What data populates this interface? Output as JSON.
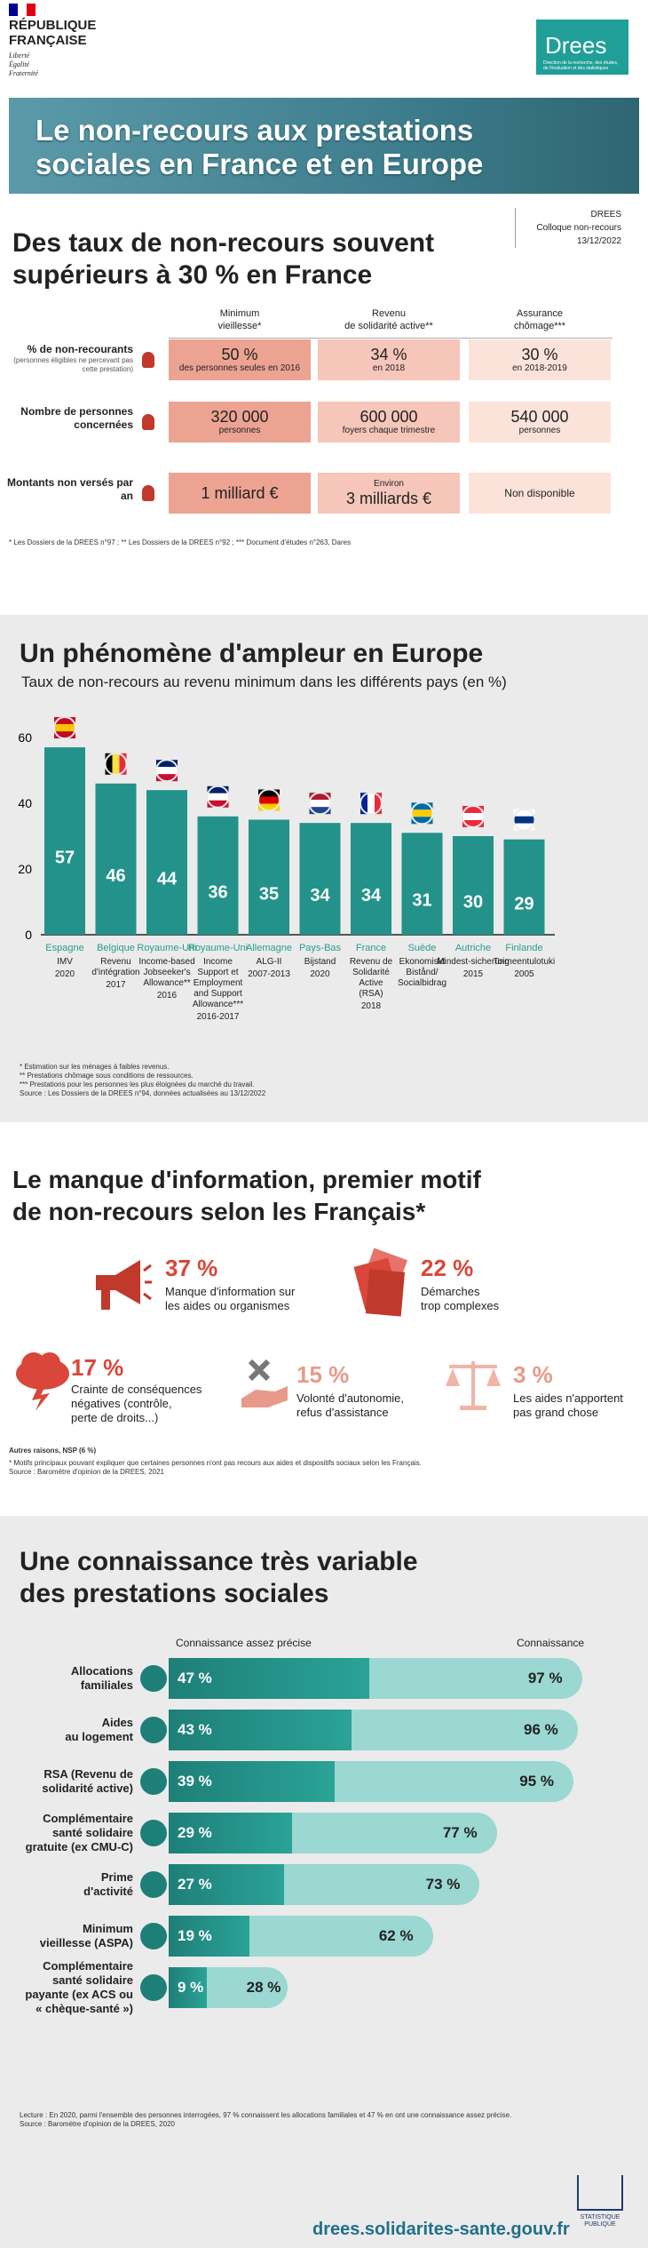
{
  "header": {
    "republic": [
      "RÉPUBLIQUE",
      "FRANÇAISE"
    ],
    "motto": [
      "Liberté",
      "Égalité",
      "Fraternité"
    ],
    "drees_logo": "Drees",
    "drees_sub": "Direction de la recherche, des études, de l'évaluation et des statistiques",
    "banner_title": [
      "Le non-recours aux prestations",
      "sociales en France et en Europe"
    ],
    "meta": [
      "DREES",
      "Colloque non-recours",
      "13/12/2022"
    ]
  },
  "s1": {
    "title": [
      "Des taux de non-recours souvent",
      "supérieurs à 30 % en France"
    ],
    "cols": [
      [
        "Minimum",
        "vieillesse*"
      ],
      [
        "Revenu",
        "de solidarité active**"
      ],
      [
        "Assurance",
        "chômage***"
      ]
    ],
    "rows": [
      {
        "label": "% de non-recourants",
        "sub": "(personnes éligibles ne percevant pas cette prestation)"
      },
      {
        "label": "Nombre de personnes concernées",
        "sub": ""
      },
      {
        "label": "Montants non versés par an",
        "sub": ""
      }
    ],
    "cells": [
      [
        {
          "v": "50 %",
          "s": "des personnes seules en 2016"
        },
        {
          "v": "34 %",
          "s": "en 2018"
        },
        {
          "v": "30 %",
          "s": "en 2018-2019"
        }
      ],
      [
        {
          "v": "320 000",
          "s": "personnes"
        },
        {
          "v": "600 000",
          "s": "foyers chaque trimestre"
        },
        {
          "v": "540 000",
          "s": "personnes"
        }
      ],
      [
        {
          "v": "1 milliard €",
          "s": ""
        },
        {
          "v": "3 milliards €",
          "s": "Environ"
        },
        {
          "v": "Non disponible",
          "s": ""
        }
      ]
    ],
    "footnote": "* Les Dossiers de la DREES n°97 ; ** Les Dossiers de la DREES n°92 ; *** Document d'études n°263, Dares",
    "colors": {
      "dark": "#eda392",
      "mid": "#f5c6b9",
      "light": "#fbe3da"
    }
  },
  "s2": {
    "title": "Un phénomène d'ampleur en Europe",
    "subtitle": "Taux de non-recours au revenu minimum dans les différents pays (en %)",
    "notes": [
      "* Estimation sur les ménages à faibles revenus.",
      "** Prestations chômage sous conditions de ressources.",
      "*** Prestations pour les personnes les plus éloignées du marché du travail.",
      "Source : Les Dossiers de la DREES n°94, données actualisées au 13/12/2022"
    ]
  },
  "chart_data": {
    "type": "bar",
    "title": "Un phénomène d'ampleur en Europe",
    "subtitle": "Taux de non-recours au revenu minimum dans les différents pays (en %)",
    "ylim": [
      0,
      60
    ],
    "yticks": [
      0,
      20,
      40,
      60
    ],
    "grid": false,
    "bar_color": "#23928a",
    "categories": [
      {
        "country": "Espagne",
        "prog": "IMV",
        "year": "2020",
        "flag": "flag-spain"
      },
      {
        "country": "Belgique",
        "prog": "Revenu d'intégration",
        "year": "2017",
        "flag": "flag-belgium"
      },
      {
        "country": "Royaume-Uni",
        "prog": "Income-based Jobseeker's Allowance**",
        "year": "2016",
        "flag": "flag-uk"
      },
      {
        "country": "Royaume-Uni",
        "prog": "Income Support et Employment and Support Allowance***",
        "year": "2016-2017",
        "flag": "flag-uk"
      },
      {
        "country": "Allemagne",
        "prog": "ALG-II",
        "year": "2007-2013",
        "flag": "flag-germany"
      },
      {
        "country": "Pays-Bas",
        "prog": "Bijstand",
        "year": "2020",
        "flag": "flag-netherlands"
      },
      {
        "country": "France",
        "prog": "Revenu de Solidarité Active (RSA)",
        "year": "2018",
        "flag": "flag-france"
      },
      {
        "country": "Suède",
        "prog": "Ekonomiskt Bistånd/ Socialbidrag",
        "year": "",
        "flag": "flag-sweden"
      },
      {
        "country": "Autriche",
        "prog": "Mindest-sicherung",
        "year": "2015",
        "flag": "flag-austria"
      },
      {
        "country": "Finlande",
        "prog": "Toimeentulotuki",
        "year": "2005",
        "flag": "flag-finland"
      }
    ],
    "values": [
      57,
      46,
      44,
      36,
      35,
      34,
      34,
      31,
      30,
      29
    ]
  },
  "s3": {
    "title": [
      "Le manque d'information, premier motif",
      "de non-recours selon les Français*"
    ],
    "items": [
      {
        "pct": "37 %",
        "label": [
          "Manque d'information sur",
          "les aides ou organismes"
        ],
        "icon": "megaphone-icon"
      },
      {
        "pct": "22 %",
        "label": [
          "Démarches",
          "trop complexes"
        ],
        "icon": "papers-icon"
      },
      {
        "pct": "17 %",
        "label": [
          "Crainte de conséquences",
          "négatives (contrôle,",
          "perte de droits...)"
        ],
        "icon": "storm-cloud-icon"
      },
      {
        "pct": "15 %",
        "label": [
          "Volonté d'autonomie,",
          "refus d'assistance"
        ],
        "icon": "refuse-hand-icon"
      },
      {
        "pct": "3 %",
        "label": [
          "Les aides n'apportent",
          "pas grand chose"
        ],
        "icon": "scale-icon"
      }
    ],
    "other": "Autres raisons, NSP (6 %)",
    "notes": [
      "* Motifs principaux pouvant expliquer que certaines personnes n'ont pas recours aux aides et dispositifs sociaux selon les Français.",
      "Source : Baromètre d'opinion de la DREES, 2021"
    ]
  },
  "s4": {
    "title": [
      "Une connaissance très variable",
      "des prestations sociales"
    ],
    "col1": "Connaissance assez précise",
    "col2": "Connaissance",
    "rows": [
      {
        "label": [
          "Allocations",
          "familiales"
        ],
        "precise": 47,
        "known": 97,
        "p": "47 %",
        "k": "97 %",
        "icon": "family-icon"
      },
      {
        "label": [
          "Aides",
          "au logement"
        ],
        "precise": 43,
        "known": 96,
        "p": "43 %",
        "k": "96 %",
        "icon": "house-icon"
      },
      {
        "label": [
          "RSA (Revenu de",
          "solidarité active)"
        ],
        "precise": 39,
        "known": 95,
        "p": "39 %",
        "k": "95 %",
        "icon": "handshake-icon"
      },
      {
        "label": [
          "Complémentaire",
          "santé solidaire",
          "gratuite (ex CMU-C)"
        ],
        "precise": 29,
        "known": 77,
        "p": "29 %",
        "k": "77 %",
        "icon": "stethoscope-icon"
      },
      {
        "label": [
          "Prime",
          "d'activité"
        ],
        "precise": 27,
        "known": 73,
        "p": "27 %",
        "k": "73 %",
        "icon": "briefcase-icon"
      },
      {
        "label": [
          "Minimum",
          "vieillesse (ASPA)"
        ],
        "precise": 19,
        "known": 62,
        "p": "19 %",
        "k": "62 %",
        "icon": "elderly-icon"
      },
      {
        "label": [
          "Complémentaire",
          "santé solidaire",
          "payante (ex ACS ou",
          "« chèque-santé »)"
        ],
        "precise": 9,
        "known": 28,
        "p": "9 %",
        "k": "28 %",
        "icon": "money-icon"
      }
    ],
    "notes": [
      "Lecture : En 2020, parmi l'ensemble des personnes interrogées, 97 % connaissent les allocations familiales et 47 % en ont une connaissance assez précise.",
      "Source : Baromètre d'opinion de la DREES, 2020"
    ]
  },
  "footer": {
    "url": "drees.solidarites-sante.gouv.fr",
    "logo": [
      "STATISTIQUE",
      "PUBLIQUE"
    ]
  }
}
